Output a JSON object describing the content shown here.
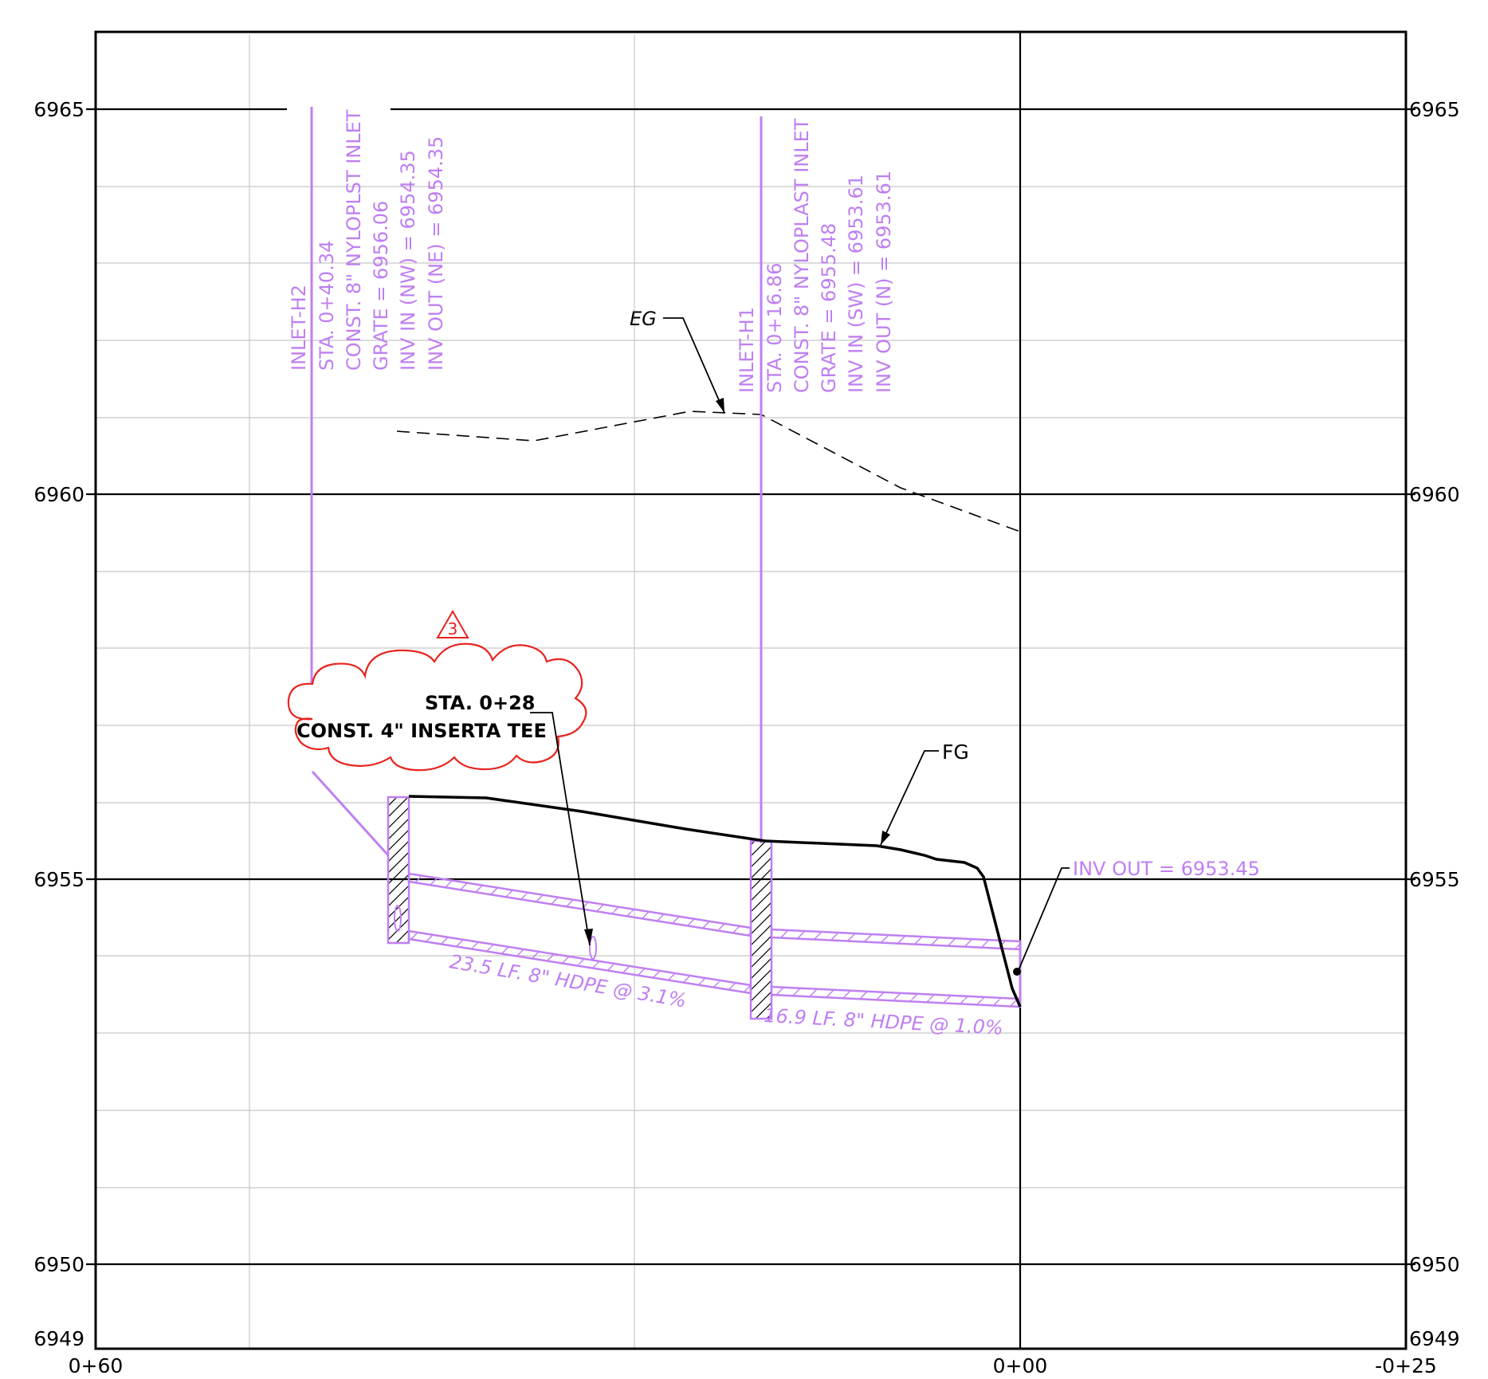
{
  "axes": {
    "left_elevations": [
      "6965",
      "6960",
      "6955",
      "6950",
      "6949"
    ],
    "right_elevations": [
      "6965",
      "6960",
      "6955",
      "6950",
      "6949"
    ],
    "stations": [
      "0+60",
      "0+00",
      "-0+25"
    ]
  },
  "inlet_h2": {
    "lines": [
      "INLET-H2",
      "STA. 0+40.34",
      "CONST. 8\" NYLOPLST INLET",
      "GRATE = 6956.06",
      "INV IN (NW) = 6954.35",
      "INV OUT (NE) = 6954.35"
    ]
  },
  "inlet_h1": {
    "lines": [
      "INLET-H1",
      "STA. 0+16.86",
      "CONST. 8\" NYLOPLAST INLET",
      "GRATE = 6955.48",
      "INV IN (SW) = 6953.61",
      "INV OUT (N) = 6953.61"
    ]
  },
  "labels": {
    "eg": "EG",
    "fg": "FG",
    "inv_out": "INV OUT = 6953.45",
    "pipe1": "23.5 LF. 8\" HDPE @ 3.1%",
    "pipe2": "16.9 LF. 8\" HDPE @ 1.0%",
    "revision": "3",
    "cloud_line1": "STA. 0+28",
    "cloud_line2": "CONST. 4\" INSERTA TEE"
  },
  "colors": {
    "pipe": "#bf7ff2",
    "revision": "#e8231e",
    "grid_major": "#000000",
    "grid_minor": "#c8c8c8"
  }
}
